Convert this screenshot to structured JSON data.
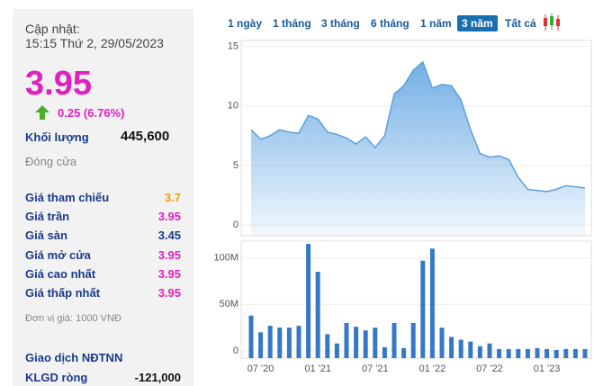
{
  "panel": {
    "updated_label": "Cập nhật:",
    "updated_time": "15:15 Thứ 2, 29/05/2023",
    "price": "3.95",
    "change": "0.25 (6.76%)",
    "volume_label": "Khối lượng",
    "volume": "445,600",
    "close_label": "Đóng cửa",
    "rows": [
      [
        "Giá tham chiếu",
        "3.7"
      ],
      [
        "Giá trần",
        "3.95"
      ],
      [
        "Giá sàn",
        "3.45"
      ],
      [
        "Giá mở cửa",
        "3.95"
      ],
      [
        "Giá cao nhất",
        "3.95"
      ],
      [
        "Giá thấp nhất",
        "3.95"
      ]
    ],
    "row_colors": [
      "#f0a000",
      "#e020c0",
      "#1a3a8a",
      "#e020c0",
      "#e020c0",
      "#e020c0"
    ],
    "unit_note": "Đơn vị giá: 1000 VNĐ",
    "foreign_title": "Giao dịch NĐTNN",
    "foreign_rows": [
      [
        "KLGD ròng",
        "-121,000"
      ]
    ]
  },
  "tabs": {
    "items": [
      "1 ngày",
      "1 tháng",
      "3 tháng",
      "6 tháng",
      "1 năm",
      "3 năm",
      "Tất cả"
    ],
    "active": 5
  },
  "chart_data": [
    {
      "type": "area",
      "color": "#5aa0e0",
      "ylim": [
        0,
        15.5
      ],
      "yticks": [
        0,
        5,
        10,
        15
      ],
      "values": [
        8,
        7.2,
        7.5,
        8,
        7.8,
        7.7,
        9.2,
        8.9,
        7.8,
        7.6,
        7.3,
        6.8,
        7.4,
        6.5,
        7.5,
        11,
        11.7,
        13,
        13.7,
        11.5,
        11.8,
        11.7,
        10.5,
        8,
        6,
        5.7,
        5.8,
        5.5,
        4,
        3,
        2.9,
        2.8,
        3,
        3.3,
        3.2,
        3.1
      ]
    },
    {
      "type": "bar",
      "color": "#3579c6",
      "ylim": [
        0,
        118
      ],
      "yticks": [
        0,
        {
          "value": 50,
          "label": "50M"
        },
        {
          "value": 100,
          "label": "100M"
        }
      ],
      "categories": [
        null,
        "07 '20",
        null,
        null,
        null,
        null,
        null,
        "01 '21",
        null,
        null,
        null,
        null,
        null,
        "07 '21",
        null,
        null,
        null,
        null,
        null,
        "01 '22",
        null,
        null,
        null,
        null,
        null,
        "07 '22",
        null,
        null,
        null,
        null,
        null,
        "01 '23",
        null,
        null,
        null,
        null
      ],
      "values": [
        38,
        20,
        27,
        25,
        25,
        27,
        115,
        85,
        18,
        8,
        30,
        26,
        22,
        25,
        4,
        30,
        3,
        30,
        97,
        110,
        25,
        15,
        12,
        10,
        5,
        8,
        2,
        2,
        2,
        2,
        3,
        2,
        1,
        2,
        2,
        2
      ]
    }
  ]
}
